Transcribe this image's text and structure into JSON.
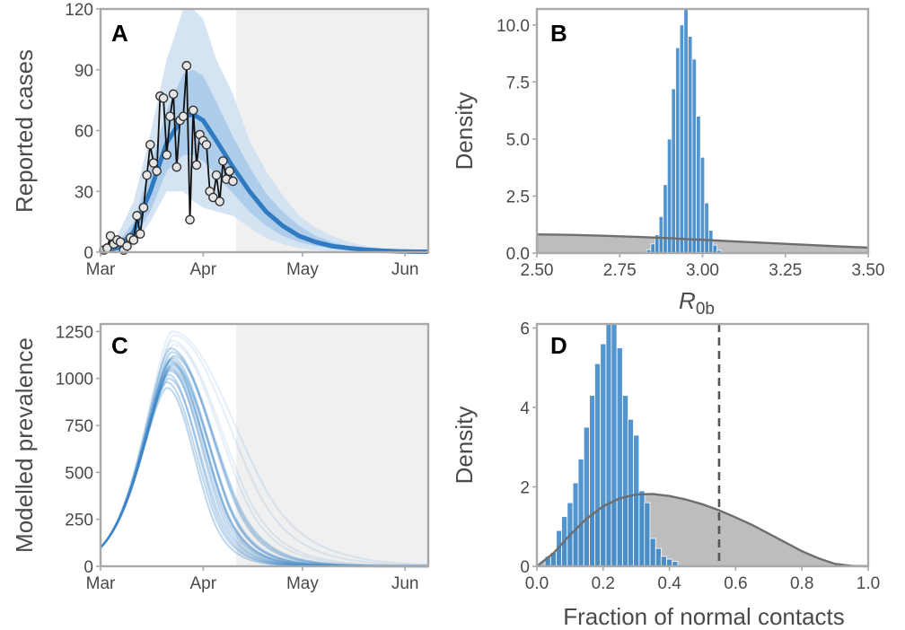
{
  "colors": {
    "blue": "#3a86c8",
    "blue_dark": "#2f7ac0",
    "band_outer": "#cfe1f2",
    "band_inner": "#a8cae9",
    "shade": "#f0f0f0",
    "prior_fill": "#bdbdbd",
    "prior_line": "#6e6e6e",
    "obs_line": "#111111",
    "obs_point": "#e6e6e6",
    "frame": "#a9a9a9"
  },
  "chart_data": [
    {
      "panel": "A",
      "type": "line",
      "ylabel": "Reported cases",
      "xlabel": "",
      "x_ticks": [
        "Mar",
        "Apr",
        "May",
        "Jun"
      ],
      "x_tick_days": [
        0,
        31,
        61,
        92
      ],
      "y_ticks": [
        "0",
        "30",
        "60",
        "90",
        "120"
      ],
      "xlim_days": [
        0,
        99
      ],
      "ylim": [
        0,
        120
      ],
      "shaded_from_day": 41,
      "observed": {
        "days": [
          1,
          2,
          3,
          4,
          5,
          6,
          7,
          8,
          9,
          10,
          11,
          12,
          13,
          14,
          15,
          16,
          17,
          18,
          19,
          20,
          21,
          22,
          23,
          24,
          25,
          26,
          27,
          28,
          29,
          30,
          31,
          32,
          33,
          34,
          35,
          36,
          37,
          38,
          39,
          40
        ],
        "values": [
          1,
          2,
          8,
          4,
          6,
          5,
          1,
          3,
          7,
          6,
          18,
          9,
          22,
          38,
          53,
          44,
          40,
          77,
          76,
          48,
          67,
          78,
          42,
          65,
          67,
          92,
          16,
          70,
          43,
          58,
          55,
          53,
          30,
          27,
          38,
          25,
          45,
          36,
          40,
          35
        ]
      },
      "median": {
        "days": [
          0,
          5,
          10,
          15,
          20,
          25,
          28,
          31,
          35,
          40,
          45,
          50,
          55,
          60,
          65,
          70,
          75,
          80,
          85,
          90,
          95,
          99
        ],
        "values": [
          0.4,
          2,
          10,
          30,
          54,
          67,
          68,
          65,
          55,
          42,
          30,
          20,
          13,
          8,
          5,
          3,
          2,
          1.2,
          0.7,
          0.4,
          0.25,
          0.2
        ]
      },
      "band_outer": {
        "days": [
          0,
          5,
          10,
          15,
          20,
          25,
          28,
          31,
          35,
          40,
          45,
          50,
          55,
          60,
          65,
          70,
          75,
          80,
          85,
          90,
          95,
          99
        ],
        "low": [
          0,
          0,
          3,
          15,
          30,
          30,
          25,
          22,
          20,
          18,
          12,
          7,
          4,
          2,
          1,
          0.5,
          0.3,
          0.2,
          0.1,
          0,
          0,
          0
        ],
        "high": [
          3,
          8,
          25,
          58,
          95,
          120,
          120,
          115,
          95,
          78,
          55,
          40,
          28,
          18,
          12,
          8,
          5,
          3,
          2,
          1.2,
          1,
          1
        ]
      },
      "band_inner": {
        "days": [
          0,
          5,
          10,
          15,
          20,
          25,
          28,
          31,
          35,
          40,
          45,
          50,
          55,
          60,
          65,
          70,
          75,
          80,
          85,
          90,
          95,
          99
        ],
        "low": [
          0,
          1,
          6,
          20,
          40,
          48,
          48,
          45,
          38,
          29,
          20,
          13,
          8,
          5,
          3,
          1.8,
          1,
          0.6,
          0.3,
          0.2,
          0.1,
          0.1
        ],
        "high": [
          1.5,
          4,
          15,
          42,
          70,
          88,
          90,
          87,
          74,
          57,
          42,
          29,
          20,
          13,
          8,
          5,
          3,
          2,
          1.2,
          0.8,
          0.5,
          0.4
        ]
      }
    },
    {
      "panel": "B",
      "type": "bar",
      "ylabel": "Density",
      "xlabel": "R",
      "xlabel_sub": "0b",
      "x_ticks": [
        "2.50",
        "2.75",
        "3.00",
        "3.25",
        "3.50"
      ],
      "x_tick_values": [
        2.5,
        2.75,
        3.0,
        3.25,
        3.5
      ],
      "y_ticks": [
        "0.0",
        "2.5",
        "5.0",
        "7.5",
        "10.0"
      ],
      "y_tick_values": [
        0,
        2.5,
        5.0,
        7.5,
        10.0
      ],
      "xlim": [
        2.5,
        3.5
      ],
      "ylim": [
        0,
        10.7
      ],
      "bin_width": 0.0125,
      "bins": [
        {
          "x": 2.8375,
          "y": 0.15
        },
        {
          "x": 2.85,
          "y": 0.4
        },
        {
          "x": 2.8625,
          "y": 0.8
        },
        {
          "x": 2.875,
          "y": 1.6
        },
        {
          "x": 2.8875,
          "y": 3.0
        },
        {
          "x": 2.9,
          "y": 5.0
        },
        {
          "x": 2.9125,
          "y": 7.2
        },
        {
          "x": 2.925,
          "y": 9.0
        },
        {
          "x": 2.9375,
          "y": 10.0
        },
        {
          "x": 2.95,
          "y": 10.7
        },
        {
          "x": 2.9625,
          "y": 9.5
        },
        {
          "x": 2.975,
          "y": 8.5
        },
        {
          "x": 2.9875,
          "y": 6.0
        },
        {
          "x": 3.0,
          "y": 4.2
        },
        {
          "x": 3.0125,
          "y": 2.2
        },
        {
          "x": 3.025,
          "y": 1.0
        },
        {
          "x": 3.0375,
          "y": 0.35
        },
        {
          "x": 3.05,
          "y": 0.12
        }
      ],
      "prior": {
        "x": [
          2.5,
          2.6,
          2.7,
          2.8,
          2.9,
          3.0,
          3.1,
          3.2,
          3.3,
          3.4,
          3.5
        ],
        "y": [
          0.82,
          0.8,
          0.76,
          0.71,
          0.65,
          0.58,
          0.51,
          0.44,
          0.37,
          0.3,
          0.24
        ]
      }
    },
    {
      "panel": "C",
      "type": "line",
      "ylabel": "Modelled prevalence",
      "xlabel": "",
      "x_ticks": [
        "Mar",
        "Apr",
        "May",
        "Jun"
      ],
      "x_tick_days": [
        0,
        31,
        61,
        92
      ],
      "y_ticks": [
        "0",
        "250",
        "500",
        "750",
        "1000",
        "1250"
      ],
      "y_tick_values": [
        0,
        250,
        500,
        750,
        1000,
        1250
      ],
      "xlim_days": [
        0,
        99
      ],
      "ylim": [
        0,
        1290
      ],
      "shaded_from_day": 41,
      "trajectory_peaks": [
        950,
        980,
        1000,
        1020,
        1040,
        1050,
        1060,
        1070,
        1080,
        1090,
        1100,
        1110,
        1120,
        1140,
        1160,
        1180,
        1200,
        1230,
        1250
      ],
      "trajectory_peak_days": [
        20,
        20,
        20.5,
        20.5,
        21,
        21,
        21,
        21.5,
        21.5,
        21,
        21,
        21.5,
        22,
        21.5,
        21,
        22,
        21.5,
        22,
        21.5
      ],
      "trajectory_decay_days": [
        8.5,
        9,
        9.5,
        9,
        10,
        9.5,
        10.5,
        10,
        11,
        10.5,
        11.5,
        11,
        12,
        12.5,
        13,
        14,
        15,
        17,
        19
      ],
      "start_value": 100
    },
    {
      "panel": "D",
      "type": "bar",
      "ylabel": "Density",
      "xlabel": "Fraction of normal contacts",
      "x_ticks": [
        "0.0",
        "0.2",
        "0.4",
        "0.6",
        "0.8",
        "1.0"
      ],
      "x_tick_values": [
        0,
        0.2,
        0.4,
        0.6,
        0.8,
        1.0
      ],
      "y_ticks": [
        "0",
        "2",
        "4",
        "6"
      ],
      "y_tick_values": [
        0,
        2,
        4,
        6
      ],
      "xlim": [
        0,
        1.0
      ],
      "ylim": [
        0,
        6.1
      ],
      "dashed_line_x": 0.55,
      "bin_width": 0.0167,
      "bins": [
        {
          "x": 0.033,
          "y": 0.25
        },
        {
          "x": 0.05,
          "y": 0.35
        },
        {
          "x": 0.067,
          "y": 0.9
        },
        {
          "x": 0.083,
          "y": 1.25
        },
        {
          "x": 0.1,
          "y": 1.6
        },
        {
          "x": 0.117,
          "y": 2.1
        },
        {
          "x": 0.133,
          "y": 2.7
        },
        {
          "x": 0.15,
          "y": 3.5
        },
        {
          "x": 0.167,
          "y": 4.3
        },
        {
          "x": 0.183,
          "y": 5.1
        },
        {
          "x": 0.2,
          "y": 5.6
        },
        {
          "x": 0.217,
          "y": 6.1
        },
        {
          "x": 0.233,
          "y": 6.1
        },
        {
          "x": 0.25,
          "y": 5.5
        },
        {
          "x": 0.267,
          "y": 4.3
        },
        {
          "x": 0.283,
          "y": 3.7
        },
        {
          "x": 0.3,
          "y": 3.3
        },
        {
          "x": 0.317,
          "y": 1.9
        },
        {
          "x": 0.333,
          "y": 1.6
        },
        {
          "x": 0.35,
          "y": 0.7
        },
        {
          "x": 0.367,
          "y": 0.45
        },
        {
          "x": 0.383,
          "y": 0.25
        },
        {
          "x": 0.4,
          "y": 0.18
        },
        {
          "x": 0.417,
          "y": 0.12
        }
      ],
      "prior": {
        "x": [
          0.0,
          0.05,
          0.1,
          0.15,
          0.2,
          0.25,
          0.3,
          0.35,
          0.4,
          0.45,
          0.5,
          0.55,
          0.6,
          0.65,
          0.7,
          0.75,
          0.8,
          0.85,
          0.9,
          0.95,
          1.0
        ],
        "y": [
          0.0,
          0.33,
          0.79,
          1.2,
          1.51,
          1.71,
          1.81,
          1.82,
          1.77,
          1.68,
          1.56,
          1.41,
          1.23,
          1.04,
          0.82,
          0.6,
          0.38,
          0.2,
          0.06,
          0.01,
          0.0
        ]
      }
    }
  ]
}
